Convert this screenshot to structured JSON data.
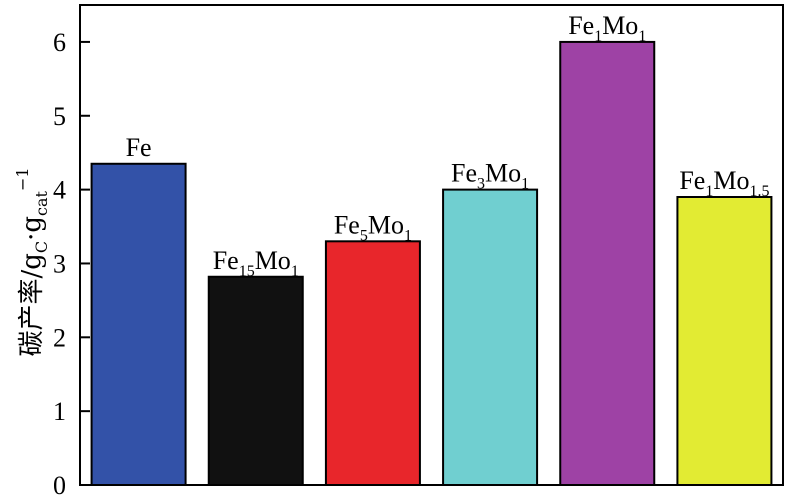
{
  "chart_data": {
    "type": "bar",
    "categories": [
      "Fe",
      "Fe15Mo1",
      "Fe5Mo1",
      "Fe3Mo1",
      "Fe1Mo1",
      "Fe1Mo1.5"
    ],
    "category_labels": [
      {
        "parts": [
          {
            "t": "Fe",
            "sub": false
          }
        ]
      },
      {
        "parts": [
          {
            "t": "Fe",
            "sub": false
          },
          {
            "t": "15",
            "sub": true
          },
          {
            "t": "Mo",
            "sub": false
          },
          {
            "t": "1",
            "sub": true
          }
        ]
      },
      {
        "parts": [
          {
            "t": "Fe",
            "sub": false
          },
          {
            "t": "5",
            "sub": true
          },
          {
            "t": "Mo",
            "sub": false
          },
          {
            "t": "1",
            "sub": true
          }
        ]
      },
      {
        "parts": [
          {
            "t": "Fe",
            "sub": false
          },
          {
            "t": "3",
            "sub": true
          },
          {
            "t": "Mo",
            "sub": false
          },
          {
            "t": "1",
            "sub": true
          }
        ]
      },
      {
        "parts": [
          {
            "t": "Fe",
            "sub": false
          },
          {
            "t": "1",
            "sub": true
          },
          {
            "t": "Mo",
            "sub": false
          },
          {
            "t": "1",
            "sub": true
          }
        ]
      },
      {
        "parts": [
          {
            "t": "Fe",
            "sub": false
          },
          {
            "t": "1",
            "sub": true
          },
          {
            "t": "Mo",
            "sub": false
          },
          {
            "t": "1.5",
            "sub": true
          }
        ]
      }
    ],
    "values": [
      4.35,
      2.82,
      3.3,
      4.0,
      6.0,
      3.9
    ],
    "colors": [
      "#3352a8",
      "#111111",
      "#e8262b",
      "#70cfd0",
      "#9e42a5",
      "#e2eb33"
    ],
    "ylabel": "碳产率/gC·gcat−1",
    "ylabel_parts": [
      {
        "t": "碳产率/g",
        "pos": "base"
      },
      {
        "t": "C",
        "pos": "sub"
      },
      {
        "t": "·g",
        "pos": "base"
      },
      {
        "t": "cat",
        "pos": "sub"
      },
      {
        "t": "−1",
        "pos": "sup"
      }
    ],
    "ylim": [
      0,
      6.5
    ],
    "yticks": [
      0,
      1,
      2,
      3,
      4,
      5,
      6
    ],
    "xlabel": "",
    "grid": false,
    "legend": "none"
  }
}
